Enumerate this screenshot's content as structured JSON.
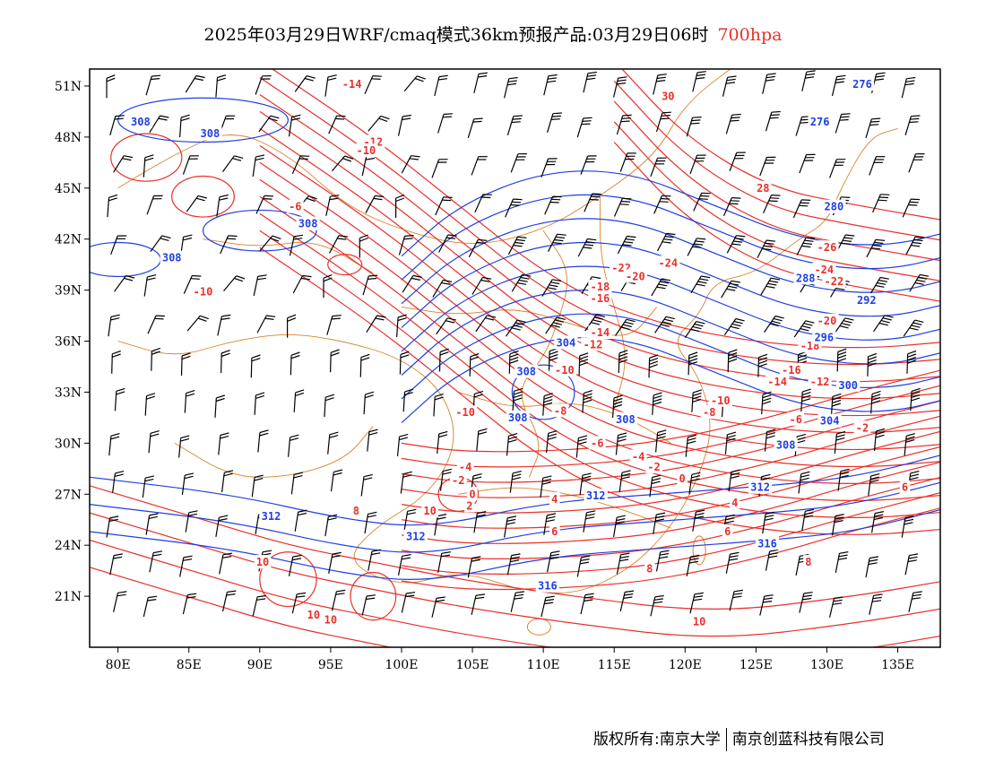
{
  "title": {
    "main": "2025年03月29日WRF/cmaq模式36km预报产品:03月29日06时",
    "level": "700hpa"
  },
  "axes": {
    "lat_labels": [
      "51N",
      "48N",
      "45N",
      "42N",
      "39N",
      "36N",
      "33N",
      "30N",
      "27N",
      "24N",
      "21N"
    ],
    "lon_labels": [
      "80E",
      "85E",
      "90E",
      "95E",
      "100E",
      "105E",
      "110E",
      "115E",
      "120E",
      "125E",
      "130E",
      "135E"
    ]
  },
  "footer": {
    "left": "版权所有:南京大学",
    "right": "南京创蓝科技有限公司"
  },
  "colors": {
    "temperature": "#e8302a",
    "geopotential": "#1f3fe0",
    "border": "#d9822b",
    "wind": "#000000"
  },
  "temperature_labels": [
    {
      "text": "-14",
      "lon": 96.5,
      "lat": 51.1
    },
    {
      "text": "-12",
      "lon": 98.0,
      "lat": 47.7
    },
    {
      "text": "-10",
      "lon": 97.5,
      "lat": 47.2
    },
    {
      "text": "-6",
      "lon": 92.5,
      "lat": 43.9
    },
    {
      "text": "-10",
      "lon": 86.0,
      "lat": 38.9
    },
    {
      "text": "30",
      "lon": 118.8,
      "lat": 50.4
    },
    {
      "text": "28",
      "lon": 125.5,
      "lat": 45.0
    },
    {
      "text": "-24",
      "lon": 118.8,
      "lat": 40.6
    },
    {
      "text": "-22",
      "lon": 115.5,
      "lat": 40.3
    },
    {
      "text": "-20",
      "lon": 116.5,
      "lat": 39.8
    },
    {
      "text": "-18",
      "lon": 114.0,
      "lat": 39.2
    },
    {
      "text": "-16",
      "lon": 114.0,
      "lat": 38.5
    },
    {
      "text": "-14",
      "lon": 114.0,
      "lat": 36.5
    },
    {
      "text": "-12",
      "lon": 113.5,
      "lat": 35.8
    },
    {
      "text": "-10",
      "lon": 111.5,
      "lat": 34.3
    },
    {
      "text": "-26",
      "lon": 130.0,
      "lat": 41.5
    },
    {
      "text": "-24",
      "lon": 129.8,
      "lat": 40.2
    },
    {
      "text": "-22",
      "lon": 130.5,
      "lat": 39.5
    },
    {
      "text": "-20",
      "lon": 130.0,
      "lat": 37.2
    },
    {
      "text": "-18",
      "lon": 128.8,
      "lat": 35.7
    },
    {
      "text": "-16",
      "lon": 127.5,
      "lat": 34.3
    },
    {
      "text": "-14",
      "lon": 126.5,
      "lat": 33.6
    },
    {
      "text": "-12",
      "lon": 129.5,
      "lat": 33.6
    },
    {
      "text": "-10",
      "lon": 122.5,
      "lat": 32.5
    },
    {
      "text": "-8",
      "lon": 121.7,
      "lat": 31.8
    },
    {
      "text": "-6",
      "lon": 127.8,
      "lat": 31.4
    },
    {
      "text": "-2",
      "lon": 132.5,
      "lat": 30.9
    },
    {
      "text": "-10",
      "lon": 104.5,
      "lat": 31.8
    },
    {
      "text": "-8",
      "lon": 111.2,
      "lat": 31.9
    },
    {
      "text": "-6",
      "lon": 113.8,
      "lat": 30.0
    },
    {
      "text": "-4",
      "lon": 116.7,
      "lat": 29.2
    },
    {
      "text": "-2",
      "lon": 117.8,
      "lat": 28.6
    },
    {
      "text": "0",
      "lon": 119.8,
      "lat": 27.9
    },
    {
      "text": "-4",
      "lon": 104.5,
      "lat": 28.6
    },
    {
      "text": "-2",
      "lon": 104.0,
      "lat": 27.8
    },
    {
      "text": "0",
      "lon": 105.0,
      "lat": 27.0
    },
    {
      "text": "2",
      "lon": 104.8,
      "lat": 26.3
    },
    {
      "text": "4",
      "lon": 110.8,
      "lat": 26.7
    },
    {
      "text": "4",
      "lon": 123.5,
      "lat": 26.5
    },
    {
      "text": "6",
      "lon": 110.8,
      "lat": 24.8
    },
    {
      "text": "6",
      "lon": 123.0,
      "lat": 24.8
    },
    {
      "text": "8",
      "lon": 96.8,
      "lat": 26.0
    },
    {
      "text": "8",
      "lon": 117.5,
      "lat": 22.6
    },
    {
      "text": "8",
      "lon": 128.7,
      "lat": 23.0
    },
    {
      "text": "6",
      "lon": 135.5,
      "lat": 27.4
    },
    {
      "text": "10",
      "lon": 102.0,
      "lat": 26.0
    },
    {
      "text": "10",
      "lon": 90.2,
      "lat": 23.0
    },
    {
      "text": "10",
      "lon": 93.8,
      "lat": 19.9
    },
    {
      "text": "10",
      "lon": 95.0,
      "lat": 19.6
    },
    {
      "text": "10",
      "lon": 121.0,
      "lat": 19.5
    }
  ],
  "geopotential_labels": [
    {
      "text": "276",
      "lon": 132.5,
      "lat": 51.1
    },
    {
      "text": "276",
      "lon": 129.5,
      "lat": 48.9
    },
    {
      "text": "280",
      "lon": 130.5,
      "lat": 43.9
    },
    {
      "text": "288",
      "lon": 128.5,
      "lat": 39.7
    },
    {
      "text": "292",
      "lon": 132.8,
      "lat": 38.4
    },
    {
      "text": "296",
      "lon": 129.8,
      "lat": 36.2
    },
    {
      "text": "300",
      "lon": 131.5,
      "lat": 33.4
    },
    {
      "text": "304",
      "lon": 111.6,
      "lat": 35.9
    },
    {
      "text": "304",
      "lon": 130.2,
      "lat": 31.3
    },
    {
      "text": "308",
      "lon": 81.6,
      "lat": 48.9
    },
    {
      "text": "308",
      "lon": 86.5,
      "lat": 48.2
    },
    {
      "text": "308",
      "lon": 93.4,
      "lat": 42.9
    },
    {
      "text": "308",
      "lon": 83.8,
      "lat": 40.9
    },
    {
      "text": "308",
      "lon": 108.8,
      "lat": 34.2
    },
    {
      "text": "308",
      "lon": 108.2,
      "lat": 31.5
    },
    {
      "text": "308",
      "lon": 115.8,
      "lat": 31.4
    },
    {
      "text": "308",
      "lon": 127.1,
      "lat": 29.9
    },
    {
      "text": "312",
      "lon": 90.8,
      "lat": 25.7
    },
    {
      "text": "312",
      "lon": 101.0,
      "lat": 24.5
    },
    {
      "text": "312",
      "lon": 113.7,
      "lat": 26.9
    },
    {
      "text": "312",
      "lon": 125.3,
      "lat": 27.4
    },
    {
      "text": "316",
      "lon": 125.8,
      "lat": 24.1
    },
    {
      "text": "316",
      "lon": 110.3,
      "lat": 21.6
    }
  ]
}
